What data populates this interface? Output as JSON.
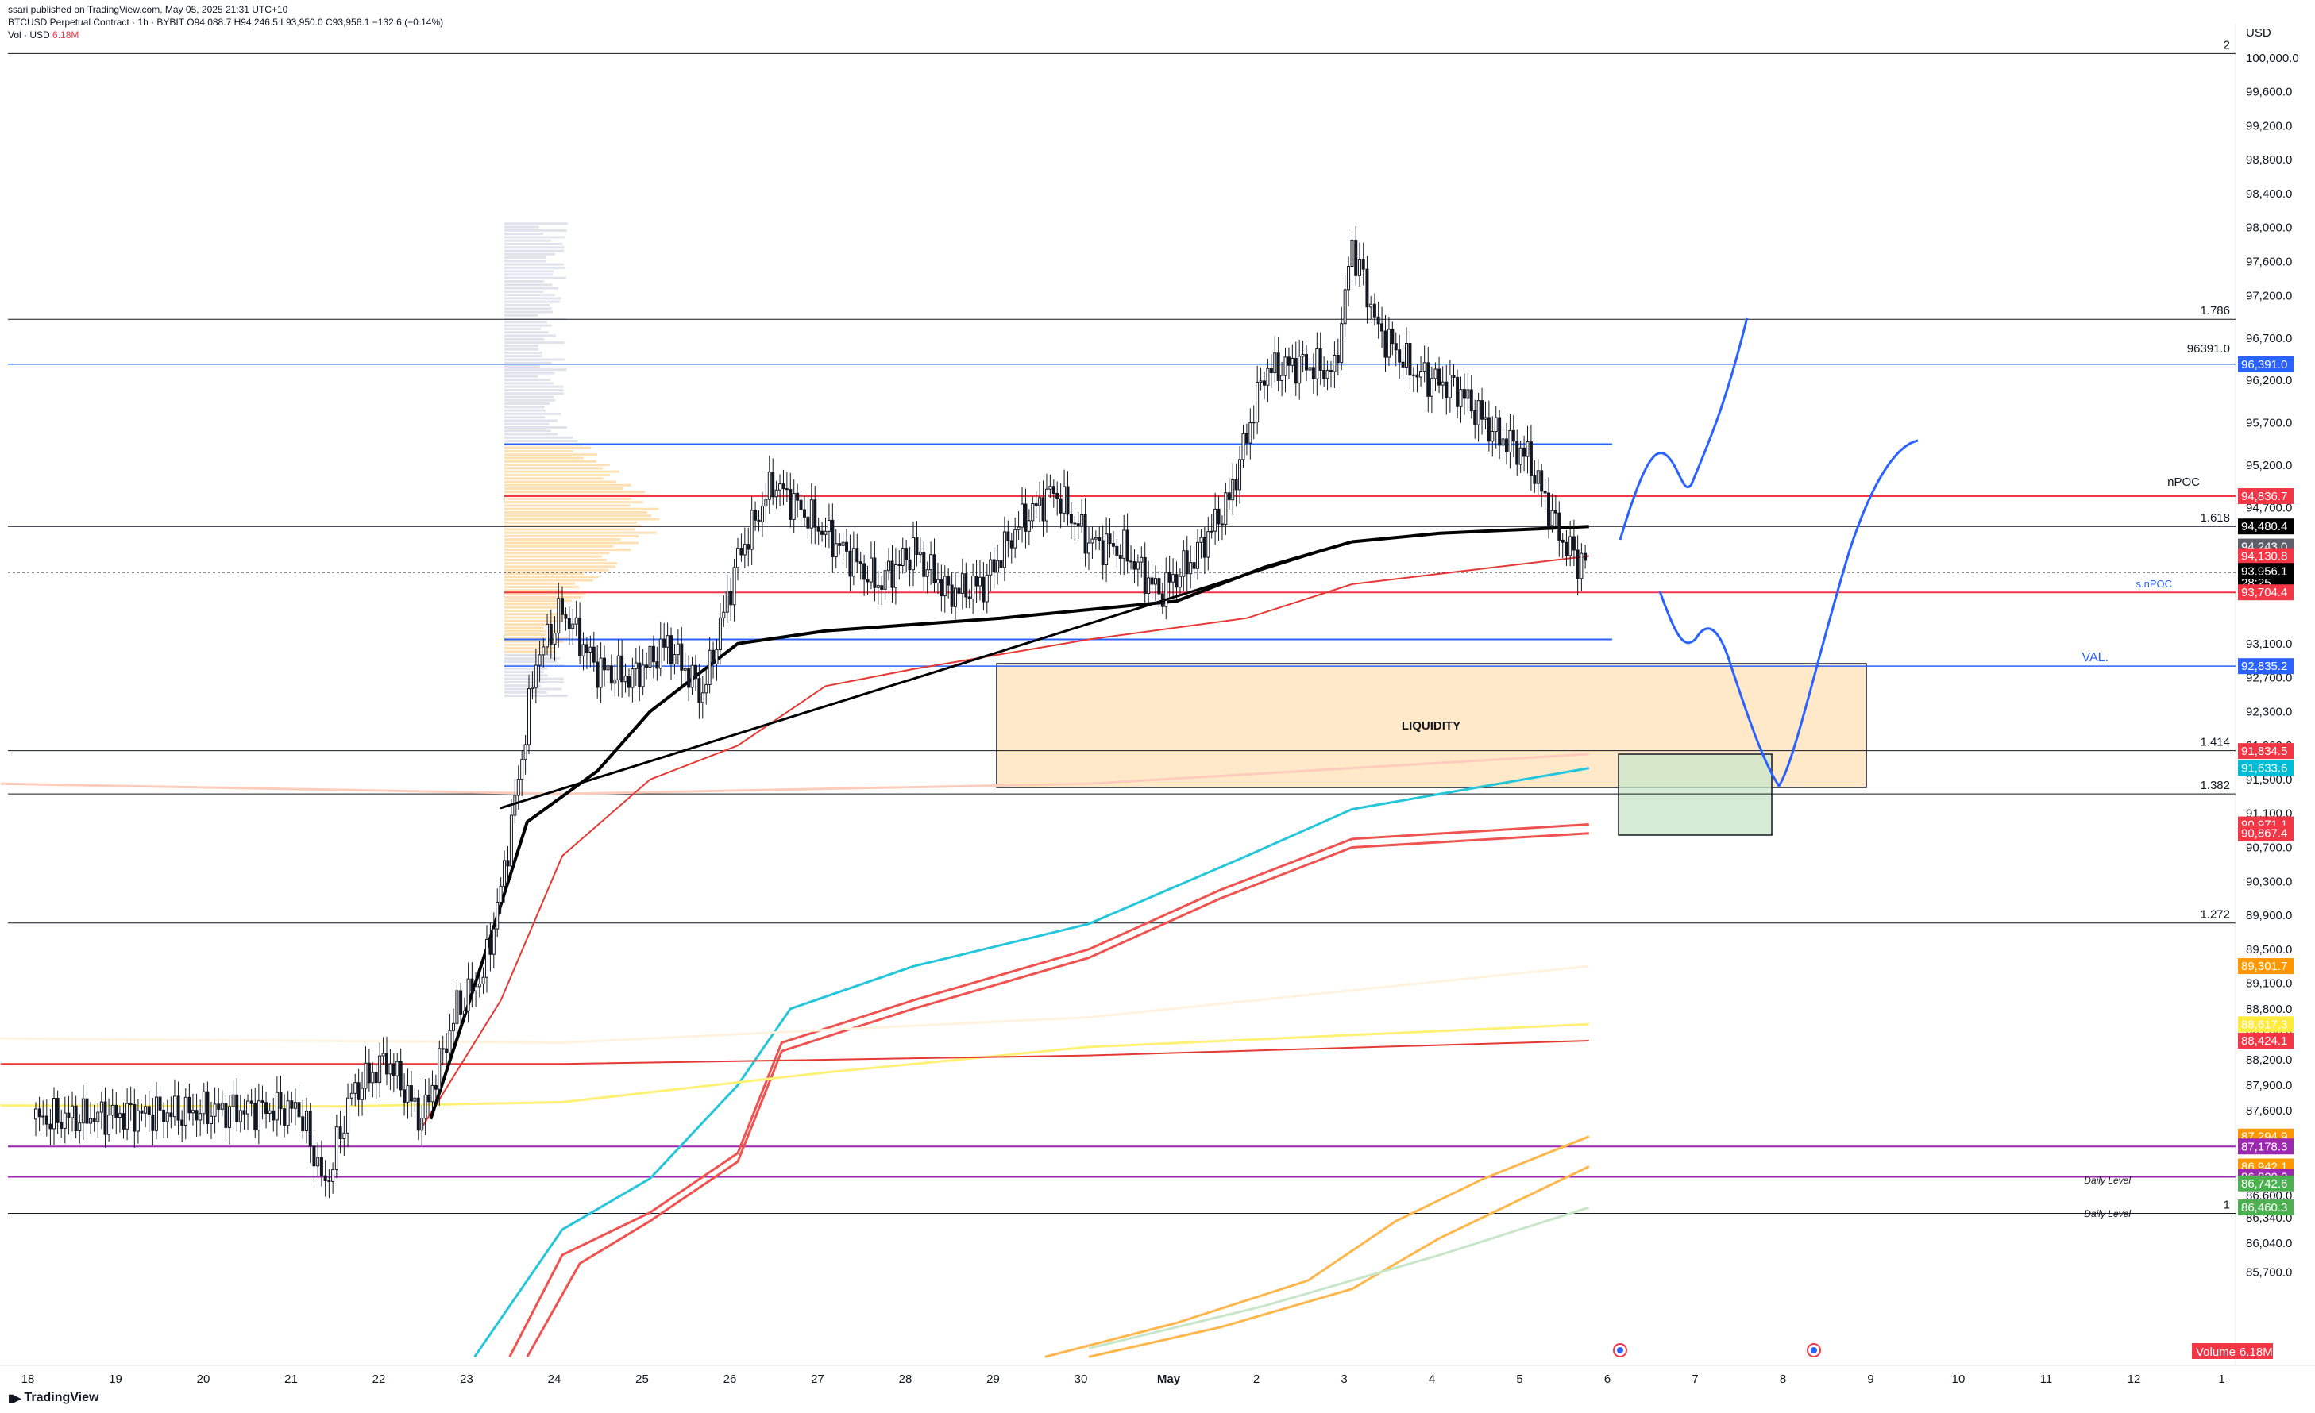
{
  "header": {
    "publisher": "ssari published on TradingView.com, May 05, 2025 21:31 UTC+10",
    "symbol_line": "BTCUSD Perpetual Contract · 1h · BYBIT  O94,088.7  H94,246.5  L93,950.0  C93,956.1  −132.6 (−0.14%)",
    "vol_label": "Vol · USD",
    "vol_value": "6.18M"
  },
  "footer": {
    "brand": "TradingView"
  },
  "chart_data": {
    "type": "candlestick",
    "symbol": "BTCUSD Perpetual Contract",
    "interval": "1h",
    "exchange": "BYBIT",
    "currency": "USD",
    "ohlc_last": {
      "open": 94088.7,
      "high": 94246.5,
      "low": 93950.0,
      "close": 93956.1,
      "change": -132.6,
      "change_pct": -0.14
    },
    "ylim": [
      84600,
      100400
    ],
    "x_ticks": [
      "18",
      "19",
      "20",
      "21",
      "22",
      "23",
      "24",
      "25",
      "26",
      "27",
      "28",
      "29",
      "30",
      "May",
      "2",
      "3",
      "4",
      "5",
      "6",
      "7",
      "8",
      "9",
      "10",
      "11",
      "12",
      "1"
    ],
    "y_ticks": [
      "100,000.0",
      "99,600.0",
      "99,200.0",
      "98,800.0",
      "98,400.0",
      "98,000.0",
      "97,600.0",
      "97,200.0",
      "96,700.0",
      "96,200.0",
      "95,700.0",
      "95,200.0",
      "94,700.0",
      "93,100.0",
      "92,700.0",
      "92,300.0",
      "91,900.0",
      "91,500.0",
      "91,100.0",
      "90,700.0",
      "90,300.0",
      "89,900.0",
      "89,500.0",
      "89,100.0",
      "88,800.0",
      "88,500.0",
      "88,200.0",
      "87,900.0",
      "87,600.0",
      "87,300.0",
      "86,600.0",
      "86,340.0",
      "86,040.0",
      "85,700.0"
    ],
    "axis_currency": "USD",
    "candles_close_path": [
      [
        0,
        87500
      ],
      [
        1,
        87550
      ],
      [
        2,
        87600
      ],
      [
        3,
        87620
      ],
      [
        3.3,
        86700
      ],
      [
        3.6,
        87800
      ],
      [
        4,
        88200
      ],
      [
        4.4,
        87500
      ],
      [
        4.8,
        88800
      ],
      [
        5.1,
        89200
      ],
      [
        5.3,
        90200
      ],
      [
        5.5,
        91500
      ],
      [
        5.7,
        92900
      ],
      [
        6,
        93500
      ],
      [
        6.4,
        92800
      ],
      [
        6.8,
        92700
      ],
      [
        7.2,
        93100
      ],
      [
        7.6,
        92500
      ],
      [
        8,
        94100
      ],
      [
        8.4,
        95000
      ],
      [
        8.8,
        94600
      ],
      [
        9.2,
        94200
      ],
      [
        9.6,
        93800
      ],
      [
        10,
        94200
      ],
      [
        10.4,
        93700
      ],
      [
        10.8,
        93800
      ],
      [
        11.2,
        94500
      ],
      [
        11.6,
        94900
      ],
      [
        12,
        94300
      ],
      [
        12.4,
        94200
      ],
      [
        12.8,
        93700
      ],
      [
        13.2,
        94100
      ],
      [
        13.6,
        94800
      ],
      [
        14,
        96300
      ],
      [
        14.4,
        96400
      ],
      [
        14.8,
        96300
      ],
      [
        15,
        97800
      ],
      [
        15.3,
        96800
      ],
      [
        15.7,
        96300
      ],
      [
        16.2,
        96100
      ],
      [
        16.6,
        95600
      ],
      [
        17,
        95300
      ],
      [
        17.4,
        94300
      ],
      [
        17.7,
        93950
      ]
    ],
    "fib_levels": [
      {
        "label": "2",
        "price": 100050
      },
      {
        "label": "1.786",
        "price": 96920
      },
      {
        "label": "1.618",
        "price": 94480
      },
      {
        "label": "1.414",
        "price": 91840
      },
      {
        "label": "1.382",
        "price": 91330
      },
      {
        "label": "1.272",
        "price": 89810
      },
      {
        "label": "1",
        "price": 86390
      }
    ],
    "annotations": {
      "liquidity_box": "LIQUIDITY",
      "npoc": "nPOC",
      "snpoc": "s.nPOC",
      "val": "VAL.",
      "daily_level_1": "Daily Level",
      "daily_level_2": "Daily Level",
      "level_96391": "96391.0"
    },
    "price_tags": [
      {
        "value": "96,391.0",
        "price": 96391,
        "color": "#2962ff"
      },
      {
        "value": "94,836.7",
        "price": 94837,
        "color": "#f23645"
      },
      {
        "value": "94,480.4",
        "price": 94480,
        "color": "#000000"
      },
      {
        "value": "94,243.0",
        "price": 94243,
        "color": "#5d606b"
      },
      {
        "value": "94,130.8",
        "price": 94131,
        "color": "#f23645"
      },
      {
        "value": "93,956.1",
        "price": 93956,
        "color": "#000000"
      },
      {
        "value": "28:25",
        "price": 93820,
        "color": "#000000"
      },
      {
        "value": "93,704.4",
        "price": 93704,
        "color": "#f23645"
      },
      {
        "value": "92,835.2",
        "price": 92835,
        "color": "#2962ff"
      },
      {
        "value": "91,834.5",
        "price": 91835,
        "color": "#f23645"
      },
      {
        "value": "91,633.6",
        "price": 91634,
        "color": "#00bcd4"
      },
      {
        "value": "90,971.1",
        "price": 90971,
        "color": "#f23645"
      },
      {
        "value": "90,867.4",
        "price": 90867,
        "color": "#f23645"
      },
      {
        "value": "89,301.7",
        "price": 89302,
        "color": "#ff9800"
      },
      {
        "value": "88,617.3",
        "price": 88617,
        "color": "#ffeb3b"
      },
      {
        "value": "88,424.1",
        "price": 88424,
        "color": "#f23645"
      },
      {
        "value": "87,294.9",
        "price": 87295,
        "color": "#ff9800"
      },
      {
        "value": "87,178.3",
        "price": 87178,
        "color": "#9c27b0"
      },
      {
        "value": "86,942.1",
        "price": 86942,
        "color": "#ff9800"
      },
      {
        "value": "86,820.2",
        "price": 86820,
        "color": "#9c27b0"
      },
      {
        "value": "86,742.6",
        "price": 86743,
        "color": "#4caf50"
      },
      {
        "value": "86,460.3",
        "price": 86460,
        "color": "#4caf50"
      }
    ],
    "volume_tag": {
      "label": "Volume",
      "value": "6.18M"
    },
    "colors": {
      "up": "#26a69a",
      "down": "#ef5350",
      "candle": "#131722",
      "blue_level": "#2962ff",
      "red_level": "#f23645",
      "purple_level": "#9c27b0",
      "liquidity_fill": "#ffe0b2",
      "green_fill": "#c8e6c9"
    }
  }
}
